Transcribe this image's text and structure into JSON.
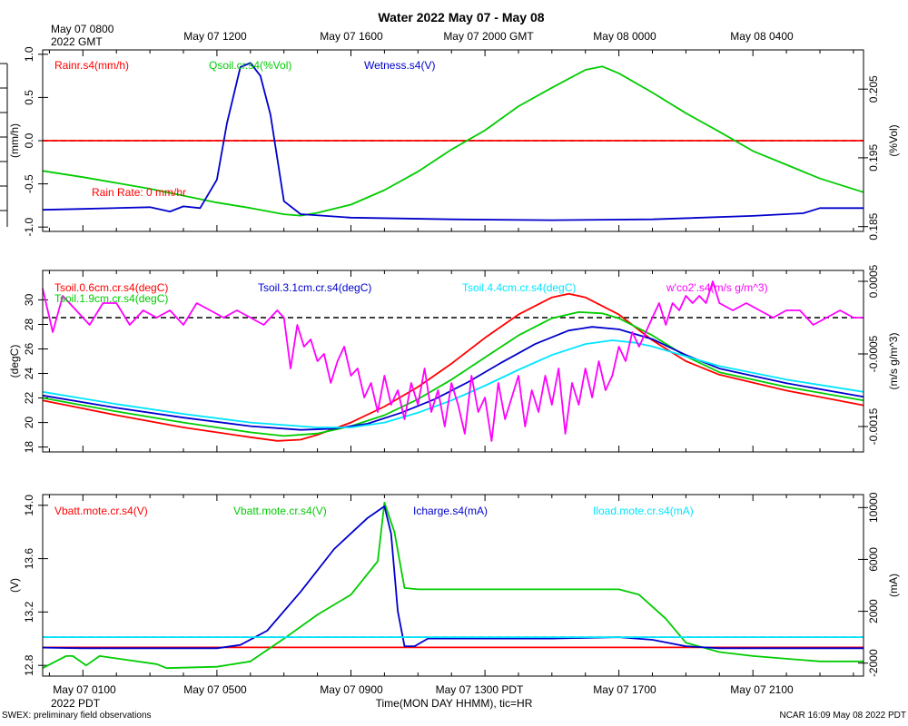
{
  "title": "Water 2022 May 07 - May 08",
  "top_axis": {
    "first_label_line1": "May 07 0800",
    "first_label_line2": "2022 GMT",
    "labels": [
      "May 07 1200",
      "May 07 1600",
      "May 07 2000 GMT",
      "May 08 0000",
      "May 08 0400"
    ]
  },
  "bottom_axis": {
    "labels": [
      "May 07 0100",
      "May 07 0500",
      "May 07 0900",
      "May 07 1300 PDT",
      "May 07 1700",
      "May 07 2100"
    ],
    "year_label": "2022 PDT",
    "title": "Time(MON DAY HHMM), tic=HR"
  },
  "footer": {
    "left": "SWEX: preliminary field observations",
    "right": "NCAR 16:09 May 08 2022 PDT"
  },
  "chart_data": [
    {
      "type": "line",
      "x_range_hours_pdt": [
        -0.2,
        24.3
      ],
      "left_axis": {
        "label": "(mm/h)",
        "range": [
          -1.05,
          1.05
        ],
        "ticks": [
          -1.0,
          -0.5,
          0.0,
          0.5,
          1.0
        ],
        "tick_labels": [
          "-1.0",
          "-0.5",
          "0.0",
          "0.5",
          "1.0"
        ]
      },
      "right_axis": {
        "label": "(%Vol)",
        "range": [
          0.1843,
          0.2107
        ],
        "ticks": [
          0.185,
          0.195,
          0.205
        ],
        "tick_labels": [
          "0.185",
          "0.195",
          "0.205"
        ]
      },
      "legend": [
        {
          "label": "Rainr.s4(mm/h)",
          "color": "#ff0000"
        },
        {
          "label": "Qsoil.cr.s4(%Vol)",
          "color": "#00cc00"
        },
        {
          "label": "Wetness.s4(V)",
          "color": "#0000cc"
        }
      ],
      "annotation": "Rain Rate: 0 mm/hr",
      "reference_lines": [
        {
          "axis": "left",
          "value": 0.0,
          "style": "dashed"
        }
      ],
      "series": [
        {
          "name": "Rainr.s4(mm/h)",
          "axis": "left",
          "color": "#ff0000",
          "x": [
            -0.2,
            24.3
          ],
          "y": [
            0.0,
            0.0
          ]
        },
        {
          "name": "Qsoil.cr.s4(%Vol)",
          "axis": "right",
          "color": "#00cc00",
          "x": [
            -0.2,
            1,
            3,
            5,
            6,
            7,
            7.5,
            8,
            9,
            10,
            11,
            12,
            13,
            14,
            15,
            16,
            16.5,
            17,
            18,
            19,
            20,
            21,
            22,
            23,
            24.3
          ],
          "y": [
            0.1931,
            0.1922,
            0.1905,
            0.1885,
            0.1877,
            0.1868,
            0.1866,
            0.187,
            0.1882,
            0.1903,
            0.193,
            0.1962,
            0.199,
            0.2025,
            0.2052,
            0.2078,
            0.2083,
            0.2073,
            0.2045,
            0.2015,
            0.1988,
            0.196,
            0.194,
            0.192,
            0.19
          ]
        },
        {
          "name": "Wetness.s4(V)",
          "axis": "left",
          "color": "#0000cc",
          "x": [
            -0.2,
            1,
            3,
            3.6,
            4.0,
            4.5,
            5.0,
            5.3,
            5.7,
            6.0,
            6.3,
            6.6,
            7.0,
            7.5,
            9,
            12,
            15,
            18,
            21,
            22.5,
            23,
            24.3
          ],
          "y": [
            -0.8,
            -0.79,
            -0.77,
            -0.82,
            -0.76,
            -0.78,
            -0.45,
            0.2,
            0.85,
            0.9,
            0.75,
            0.3,
            -0.7,
            -0.85,
            -0.89,
            -0.91,
            -0.92,
            -0.91,
            -0.87,
            -0.84,
            -0.78,
            -0.78
          ]
        }
      ]
    },
    {
      "type": "line",
      "x_range_hours_pdt": [
        -0.2,
        24.3
      ],
      "left_axis": {
        "label": "(degC)",
        "range": [
          17.6,
          32.4
        ],
        "ticks": [
          18,
          20,
          22,
          24,
          26,
          28,
          30
        ],
        "tick_labels": [
          "18",
          "20",
          "22",
          "24",
          "26",
          "28",
          "30"
        ]
      },
      "right_axis": {
        "label": "(m/s g/m^3)",
        "range": [
          -0.00185,
          0.00065
        ],
        "ticks": [
          -0.0015,
          -0.0005,
          0.0005
        ],
        "tick_labels": [
          "-0.0015",
          "-0.0005",
          "0.0005"
        ]
      },
      "legend": [
        {
          "label": "Tsoil.0.6cm.cr.s4(degC)",
          "color": "#ff0000"
        },
        {
          "label": "Tsoil.1.9cm.cr.s4(degC)",
          "color": "#00cc00"
        },
        {
          "label": "Tsoil.3.1cm.cr.s4(degC)",
          "color": "#0000cc"
        },
        {
          "label": "Tsoil.4.4cm.cr.s4(degC)",
          "color": "#00e5ff"
        },
        {
          "label": "w'co2'.s4(m/s g/m^3)",
          "color": "#ff00ff"
        }
      ],
      "reference_lines": [
        {
          "axis": "right",
          "value": 0.0,
          "style": "dashed"
        }
      ],
      "series": [
        {
          "name": "Tsoil.0.6cm.cr.s4(degC)",
          "axis": "left",
          "color": "#ff0000",
          "x": [
            -0.2,
            2,
            4,
            6,
            6.8,
            7.5,
            8,
            9,
            10,
            11,
            12,
            13,
            14,
            15,
            15.5,
            16,
            17,
            18,
            19,
            20,
            22,
            24.3
          ],
          "y": [
            21.8,
            20.6,
            19.6,
            18.8,
            18.5,
            18.6,
            19.0,
            20.0,
            21.3,
            22.9,
            24.8,
            26.9,
            28.8,
            30.2,
            30.5,
            30.2,
            28.8,
            26.7,
            25.0,
            23.9,
            22.6,
            21.4
          ]
        },
        {
          "name": "Tsoil.1.9cm.cr.s4(degC)",
          "axis": "left",
          "color": "#00cc00",
          "x": [
            -0.2,
            2,
            4,
            6,
            7,
            8,
            9,
            10,
            11,
            12,
            13,
            14,
            15,
            15.8,
            16.5,
            17,
            18,
            19,
            20,
            22,
            24.3
          ],
          "y": [
            22.0,
            20.9,
            20.0,
            19.2,
            18.9,
            19.1,
            19.7,
            20.6,
            21.9,
            23.5,
            25.3,
            27.1,
            28.5,
            29.0,
            28.9,
            28.5,
            27.1,
            25.4,
            24.1,
            22.9,
            21.8
          ]
        },
        {
          "name": "Tsoil.3.1cm.cr.s4(degC)",
          "axis": "left",
          "color": "#0000cc",
          "x": [
            -0.2,
            2,
            4,
            6,
            7.5,
            8.5,
            9.5,
            10.5,
            11.5,
            12.5,
            13.5,
            14.5,
            15.5,
            16.2,
            17,
            18,
            19,
            20,
            22,
            24.3
          ],
          "y": [
            22.2,
            21.2,
            20.4,
            19.7,
            19.4,
            19.5,
            19.9,
            20.8,
            21.9,
            23.3,
            24.9,
            26.4,
            27.5,
            27.8,
            27.6,
            26.8,
            25.5,
            24.4,
            23.2,
            22.1
          ]
        },
        {
          "name": "Tsoil.4.4cm.cr.s4(degC)",
          "axis": "left",
          "color": "#00e5ff",
          "x": [
            -0.2,
            2,
            4,
            6,
            8,
            9,
            10,
            11,
            12,
            13,
            14,
            15,
            16,
            16.8,
            17.5,
            18,
            19,
            20,
            22,
            24.3
          ],
          "y": [
            22.5,
            21.5,
            20.7,
            20.0,
            19.6,
            19.6,
            20.0,
            20.8,
            21.8,
            23.0,
            24.3,
            25.5,
            26.4,
            26.7,
            26.5,
            26.2,
            25.4,
            24.6,
            23.5,
            22.5
          ]
        },
        {
          "name": "w'co2'.s4(m/s g/m^3)",
          "axis": "right",
          "color": "#ff00ff",
          "x": [
            -0.2,
            0.1,
            0.4,
            0.8,
            1.2,
            1.6,
            2.0,
            2.4,
            2.8,
            3.2,
            3.6,
            4.0,
            4.4,
            4.8,
            5.2,
            5.6,
            6.0,
            6.4,
            6.8,
            7.0,
            7.2,
            7.4,
            7.6,
            7.8,
            8.0,
            8.2,
            8.4,
            8.6,
            8.8,
            9.0,
            9.2,
            9.4,
            9.6,
            9.8,
            10.0,
            10.2,
            10.4,
            10.6,
            10.8,
            11.0,
            11.2,
            11.4,
            11.6,
            11.8,
            12.0,
            12.2,
            12.4,
            12.6,
            12.8,
            13.0,
            13.2,
            13.4,
            13.6,
            13.8,
            14.0,
            14.2,
            14.4,
            14.6,
            14.8,
            15.0,
            15.2,
            15.4,
            15.6,
            15.8,
            16.0,
            16.2,
            16.4,
            16.6,
            16.8,
            17.0,
            17.2,
            17.4,
            17.6,
            17.8,
            18.0,
            18.2,
            18.4,
            18.6,
            18.8,
            19.0,
            19.2,
            19.4,
            19.6,
            19.8,
            20.0,
            20.4,
            20.8,
            21.2,
            21.6,
            22.0,
            22.4,
            22.8,
            23.2,
            23.6,
            24.0,
            24.3
          ],
          "y": [
            0.0004,
            -0.0002,
            0.0003,
            0.0001,
            -0.0001,
            0.0002,
            0.0002,
            -0.0001,
            0.0001,
            0.0,
            0.0001,
            -0.0001,
            0.0002,
            0.0001,
            0.0,
            0.0001,
            0.0,
            -0.0001,
            0.0001,
            0.0,
            -0.0007,
            -0.0001,
            -0.0004,
            -0.0003,
            -0.0006,
            -0.0005,
            -0.0009,
            -0.0006,
            -0.0004,
            -0.0008,
            -0.0007,
            -0.0011,
            -0.0009,
            -0.0013,
            -0.0008,
            -0.0012,
            -0.001,
            -0.0014,
            -0.0009,
            -0.0012,
            -0.0007,
            -0.0013,
            -0.001,
            -0.0015,
            -0.0009,
            -0.0012,
            -0.0016,
            -0.0008,
            -0.0013,
            -0.0011,
            -0.0017,
            -0.0009,
            -0.0014,
            -0.0011,
            -0.0008,
            -0.0015,
            -0.001,
            -0.0013,
            -0.0008,
            -0.0012,
            -0.0007,
            -0.0016,
            -0.0009,
            -0.0012,
            -0.0007,
            -0.0011,
            -0.0006,
            -0.001,
            -0.0008,
            -0.0004,
            -0.0006,
            -0.0002,
            -0.0004,
            -0.0002,
            0.0,
            0.0002,
            -0.0001,
            0.0002,
            0.0001,
            0.0003,
            0.0002,
            0.0003,
            0.0002,
            0.0005,
            0.0002,
            0.0001,
            0.0002,
            0.0001,
            0.0,
            0.0001,
            0.0001,
            -0.0001,
            0.0,
            0.0001,
            0.0,
            0.0
          ]
        }
      ]
    },
    {
      "type": "line",
      "x_range_hours_pdt": [
        -0.2,
        24.3
      ],
      "left_axis": {
        "label": "(V)",
        "range": [
          12.72,
          14.08
        ],
        "ticks": [
          12.8,
          13.2,
          13.6,
          14.0
        ],
        "tick_labels": [
          "12.8",
          "13.2",
          "13.6",
          "14.0"
        ]
      },
      "right_axis": {
        "label": "(mA)",
        "range": [
          -3000,
          11000
        ],
        "ticks": [
          -2000,
          2000,
          6000,
          10000
        ],
        "tick_labels": [
          "-2000",
          "2000",
          "6000",
          "10000"
        ]
      },
      "legend": [
        {
          "label": "Vbatt.mote.cr.s4(V)",
          "color": "#ff0000"
        },
        {
          "label": "Vbatt.mote.cr.s4(V)",
          "color": "#00cc00"
        },
        {
          "label": "Icharge.s4(mA)",
          "color": "#0000cc"
        },
        {
          "label": "Iload.mote.cr.s4(mA)",
          "color": "#00e5ff"
        }
      ],
      "reference_lines": [
        {
          "axis": "right",
          "value": 0,
          "style": "dashed"
        }
      ],
      "series": [
        {
          "name": "Vbatt.mote.cr.s4(V)",
          "axis": "left",
          "color": "#ff0000",
          "x": [
            -0.2,
            24.3
          ],
          "y": [
            12.935,
            12.935
          ]
        },
        {
          "name": "Vbatt.mote.cr.s4(V)",
          "axis": "left",
          "color": "#00cc00",
          "x": [
            -0.2,
            0.5,
            0.7,
            1.1,
            1.5,
            3.2,
            3.5,
            5.0,
            6.0,
            7.0,
            8.0,
            9.0,
            9.8,
            10.0,
            10.3,
            10.6,
            11.0,
            13.0,
            15.0,
            17.0,
            17.6,
            18.4,
            19.0,
            20.0,
            21.0,
            22.0,
            23.0,
            24.3
          ],
          "y": [
            12.78,
            12.87,
            12.87,
            12.8,
            12.87,
            12.81,
            12.78,
            12.79,
            12.83,
            13.0,
            13.18,
            13.33,
            13.58,
            14.02,
            13.8,
            13.38,
            13.37,
            13.37,
            13.37,
            13.37,
            13.33,
            13.15,
            12.97,
            12.9,
            12.87,
            12.85,
            12.83,
            12.83
          ]
        },
        {
          "name": "Icharge.s4(mA)",
          "axis": "right",
          "color": "#0000cc",
          "x": [
            -0.2,
            1,
            3,
            5,
            5.7,
            6.5,
            7.5,
            8.5,
            9.5,
            10.0,
            10.2,
            10.4,
            10.6,
            10.9,
            11.3,
            13,
            15,
            17,
            18,
            19,
            20,
            21,
            22,
            24.3
          ],
          "y": [
            -800,
            -850,
            -850,
            -850,
            -600,
            500,
            3500,
            6800,
            9200,
            10100,
            8000,
            2000,
            -700,
            -700,
            -100,
            -100,
            -100,
            0,
            -200,
            -700,
            -850,
            -850,
            -850,
            -850
          ]
        },
        {
          "name": "Iload.mote.cr.s4(mA)",
          "axis": "right",
          "color": "#00e5ff",
          "x": [
            -0.2,
            24.3
          ],
          "y": [
            0,
            0
          ]
        }
      ]
    }
  ]
}
